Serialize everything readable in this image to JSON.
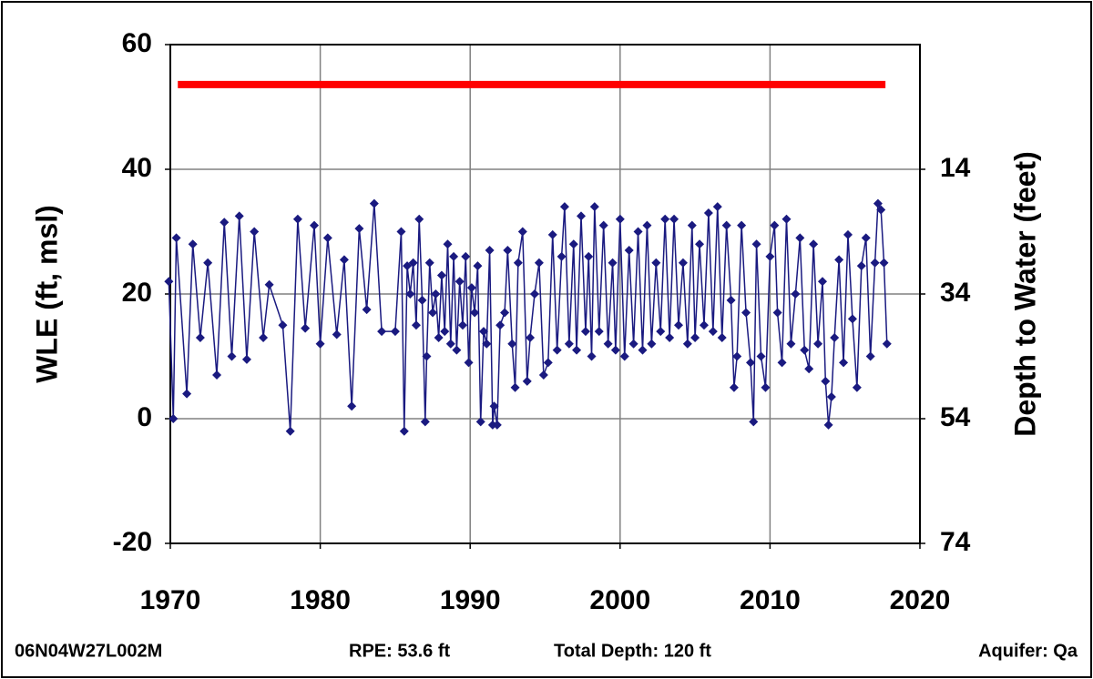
{
  "chart_data": {
    "type": "line",
    "y_label": "WLE (ft, msl)",
    "y2_label": "Depth to Water (feet)",
    "xlim": [
      1970,
      2020
    ],
    "xticks": [
      1970,
      1980,
      1990,
      2000,
      2010,
      2020
    ],
    "ylim": [
      -20,
      60
    ],
    "yticks": [
      -20,
      0,
      20,
      40,
      60
    ],
    "y2lim": [
      73.6,
      -6.4
    ],
    "y2ticks": [
      {
        "value": 13.6,
        "label": "14"
      },
      {
        "value": 33.6,
        "label": "34"
      },
      {
        "value": 53.6,
        "label": "54"
      },
      {
        "value": 73.6,
        "label": "74"
      }
    ],
    "grid": true,
    "reference_line": {
      "y": 53.6,
      "x": [
        1970.5,
        2017.7
      ],
      "color": "#ff0000"
    },
    "series": [
      {
        "color": "#1a1a80",
        "x": [
          1969.9,
          1970.2,
          1970.4,
          1971.1,
          1971.5,
          1972.0,
          1972.5,
          1973.1,
          1973.6,
          1974.1,
          1974.6,
          1975.1,
          1975.6,
          1976.2,
          1976.6,
          1977.5,
          1978.0,
          1978.5,
          1979.0,
          1979.6,
          1980.0,
          1980.5,
          1981.1,
          1981.6,
          1982.1,
          1982.6,
          1983.1,
          1983.6,
          1984.1,
          1985.0,
          1985.4,
          1985.6,
          1985.8,
          1986.0,
          1986.2,
          1986.4,
          1986.6,
          1986.8,
          1987.0,
          1987.1,
          1987.3,
          1987.5,
          1987.7,
          1987.9,
          1988.1,
          1988.3,
          1988.5,
          1988.7,
          1988.9,
          1989.1,
          1989.3,
          1989.5,
          1989.7,
          1989.9,
          1990.1,
          1990.3,
          1990.5,
          1990.7,
          1990.9,
          1991.1,
          1991.3,
          1991.5,
          1991.6,
          1991.8,
          1992.0,
          1992.3,
          1992.5,
          1992.8,
          1993.0,
          1993.2,
          1993.5,
          1993.8,
          1994.0,
          1994.3,
          1994.6,
          1994.9,
          1995.2,
          1995.5,
          1995.8,
          1996.1,
          1996.3,
          1996.6,
          1996.9,
          1997.1,
          1997.4,
          1997.7,
          1997.9,
          1998.1,
          1998.3,
          1998.6,
          1998.9,
          1999.2,
          1999.5,
          1999.7,
          2000.0,
          2000.3,
          2000.6,
          2000.9,
          2001.2,
          2001.5,
          2001.8,
          2002.1,
          2002.4,
          2002.7,
          2003.0,
          2003.3,
          2003.6,
          2003.9,
          2004.2,
          2004.5,
          2004.8,
          2005.0,
          2005.3,
          2005.6,
          2005.9,
          2006.2,
          2006.5,
          2006.8,
          2007.1,
          2007.4,
          2007.6,
          2007.8,
          2008.1,
          2008.4,
          2008.7,
          2008.9,
          2009.1,
          2009.4,
          2009.7,
          2010.0,
          2010.3,
          2010.5,
          2010.8,
          2011.1,
          2011.4,
          2011.7,
          2012.0,
          2012.3,
          2012.6,
          2012.9,
          2013.2,
          2013.5,
          2013.7,
          2013.9,
          2014.1,
          2014.3,
          2014.6,
          2014.9,
          2015.2,
          2015.5,
          2015.8,
          2016.1,
          2016.4,
          2016.7,
          2017.0,
          2017.2,
          2017.4,
          2017.6,
          2017.8
        ],
        "values": [
          22,
          0,
          29,
          4,
          28,
          13,
          25,
          7,
          31.5,
          10,
          32.5,
          9.5,
          30,
          13,
          21.5,
          15,
          -2,
          32,
          14.5,
          31,
          12,
          29,
          13.5,
          25.5,
          2,
          30.5,
          17.5,
          34.5,
          14,
          14,
          30,
          -2,
          24.5,
          20,
          25,
          15,
          32,
          19,
          -0.5,
          10,
          25,
          17,
          20,
          13,
          23,
          14,
          28,
          12,
          26,
          11,
          22,
          15,
          26,
          9,
          21,
          17,
          24.5,
          -0.5,
          14,
          12,
          27,
          -1,
          2,
          -1,
          15,
          17,
          27,
          12,
          5,
          25,
          30,
          6,
          13,
          20,
          25,
          7,
          9,
          29.5,
          11,
          26,
          34,
          12,
          28,
          11,
          32.5,
          14,
          26,
          10,
          34,
          14,
          31,
          12,
          25,
          11,
          32,
          10,
          27,
          12,
          30,
          11,
          31,
          12,
          25,
          14,
          32,
          13,
          32,
          15,
          25,
          12,
          31,
          13,
          28,
          15,
          33,
          14,
          34,
          13,
          31,
          19,
          5,
          10,
          31,
          17,
          9,
          -0.5,
          28,
          10,
          5,
          26,
          31,
          17,
          9,
          32,
          12,
          20,
          29,
          11,
          8,
          28,
          12,
          22,
          6,
          -1,
          3.5,
          13,
          25.5,
          9,
          29.5,
          16,
          5,
          24.5,
          29,
          10,
          25,
          34.5,
          33.5,
          25,
          12
        ]
      }
    ]
  },
  "footer": {
    "station": "06N04W27L002M",
    "rpe": "RPE: 53.6 ft",
    "total_depth": "Total Depth: 120 ft",
    "aquifer": "Aquifer: Qa"
  }
}
